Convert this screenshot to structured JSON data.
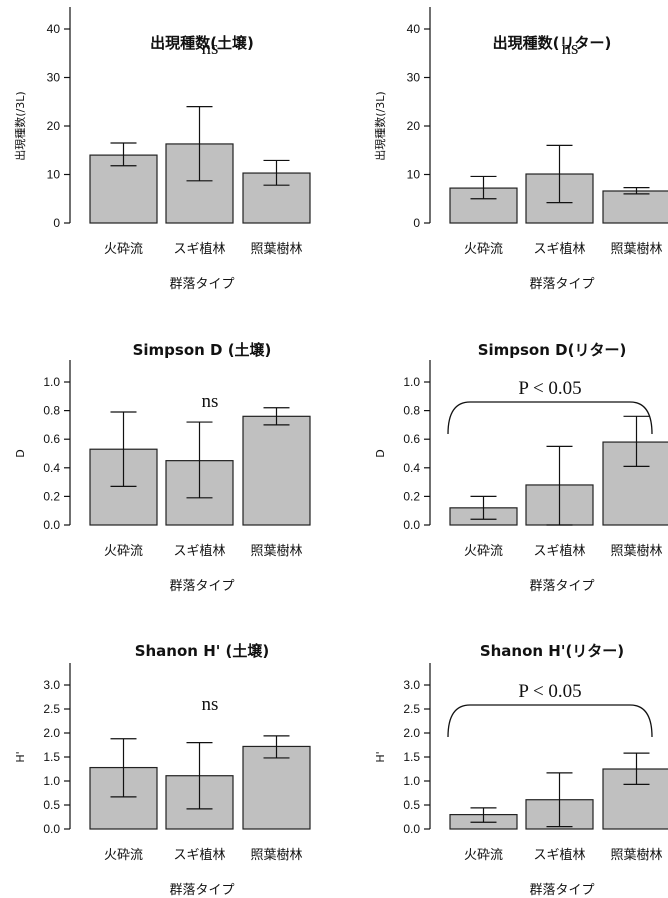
{
  "chart_data": [
    {
      "type": "bar",
      "title": "出現種数(土壌)",
      "xlabel": "群落タイプ",
      "ylabel": "出現種数(/3L)",
      "categories": [
        "火砕流",
        "スギ植林",
        "照葉樹林"
      ],
      "values": [
        14.0,
        16.3,
        10.3
      ],
      "error_low": [
        11.8,
        8.7,
        7.8
      ],
      "error_high": [
        16.5,
        24.0,
        12.9
      ],
      "ylim": [
        0,
        40
      ],
      "yticks": [
        "0",
        "10",
        "20",
        "30",
        "40"
      ],
      "annotation": "ns"
    },
    {
      "type": "bar",
      "title": "出現種数(リター)",
      "xlabel": "群落タイプ",
      "ylabel": "出現種数(/3L)",
      "categories": [
        "火砕流",
        "スギ植林",
        "照葉樹林"
      ],
      "values": [
        7.2,
        10.1,
        6.6
      ],
      "error_low": [
        5.0,
        4.2,
        6.0
      ],
      "error_high": [
        9.6,
        16.0,
        7.3
      ],
      "ylim": [
        0,
        40
      ],
      "yticks": [
        "0",
        "10",
        "20",
        "30",
        "40"
      ],
      "annotation": "ns"
    },
    {
      "type": "bar",
      "title": "Simpson D (土壌)",
      "xlabel": "群落タイプ",
      "ylabel": "D",
      "categories": [
        "火砕流",
        "スギ植林",
        "照葉樹林"
      ],
      "values": [
        0.53,
        0.45,
        0.76
      ],
      "error_low": [
        0.27,
        0.19,
        0.7
      ],
      "error_high": [
        0.79,
        0.72,
        0.82
      ],
      "ylim": [
        0,
        1.0
      ],
      "yticks": [
        "0.0",
        "0.2",
        "0.4",
        "0.6",
        "0.8",
        "1.0"
      ],
      "annotation": "ns"
    },
    {
      "type": "bar",
      "title": "Simpson D(リター)",
      "xlabel": "群落タイプ",
      "ylabel": "D",
      "categories": [
        "火砕流",
        "スギ植林",
        "照葉樹林"
      ],
      "values": [
        0.12,
        0.28,
        0.58
      ],
      "error_low": [
        0.04,
        0.0,
        0.41
      ],
      "error_high": [
        0.2,
        0.55,
        0.76
      ],
      "ylim": [
        0,
        1.0
      ],
      "yticks": [
        "0.0",
        "0.2",
        "0.4",
        "0.6",
        "0.8",
        "1.0"
      ],
      "annotation": "P < 0.05"
    },
    {
      "type": "bar",
      "title": "Shanon H' (土壌)",
      "xlabel": "群落タイプ",
      "ylabel": "H'",
      "categories": [
        "火砕流",
        "スギ植林",
        "照葉樹林"
      ],
      "values": [
        1.28,
        1.11,
        1.72
      ],
      "error_low": [
        0.67,
        0.42,
        1.48
      ],
      "error_high": [
        1.88,
        1.8,
        1.94
      ],
      "ylim": [
        0,
        3.0
      ],
      "yticks": [
        "0.0",
        "0.5",
        "1.0",
        "1.5",
        "2.0",
        "2.5",
        "3.0"
      ],
      "annotation": "ns"
    },
    {
      "type": "bar",
      "title": "Shanon H'(リター)",
      "xlabel": "群落タイプ",
      "ylabel": "H'",
      "categories": [
        "火砕流",
        "スギ植林",
        "照葉樹林"
      ],
      "values": [
        0.3,
        0.61,
        1.25
      ],
      "error_low": [
        0.14,
        0.05,
        0.93
      ],
      "error_high": [
        0.44,
        1.17,
        1.58
      ],
      "ylim": [
        0,
        3.0
      ],
      "yticks": [
        "0.0",
        "0.5",
        "1.0",
        "1.5",
        "2.0",
        "2.5",
        "3.0"
      ],
      "annotation": "P < 0.05"
    }
  ]
}
